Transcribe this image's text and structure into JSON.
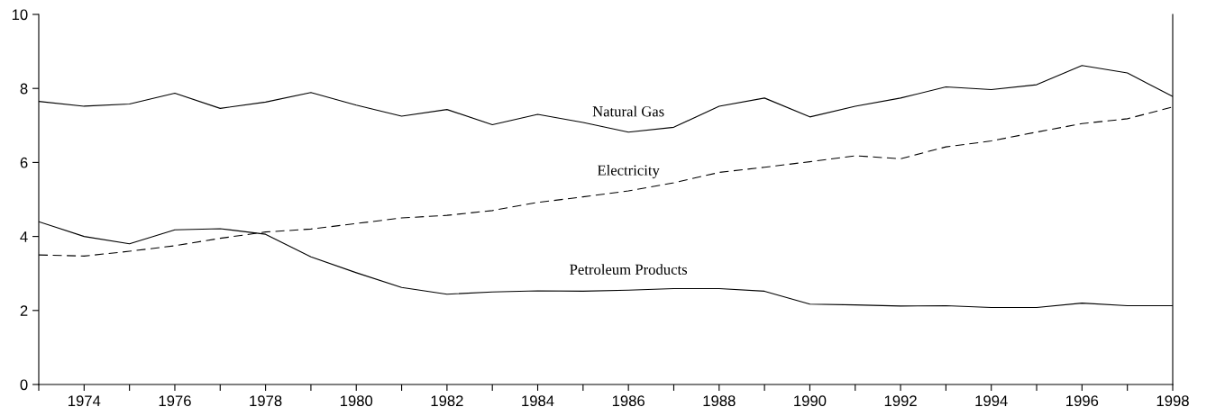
{
  "chart_data": {
    "type": "line",
    "x": [
      1973,
      1974,
      1975,
      1976,
      1977,
      1978,
      1979,
      1980,
      1981,
      1982,
      1983,
      1984,
      1985,
      1986,
      1987,
      1988,
      1989,
      1990,
      1991,
      1992,
      1993,
      1994,
      1995,
      1996,
      1997,
      1998
    ],
    "series": [
      {
        "name": "Natural Gas",
        "color": "#000000",
        "line_style": "solid",
        "values": [
          7.65,
          7.52,
          7.58,
          7.87,
          7.46,
          7.63,
          7.89,
          7.55,
          7.25,
          7.43,
          7.02,
          7.3,
          7.08,
          6.82,
          6.95,
          7.52,
          7.74,
          7.23,
          7.52,
          7.74,
          8.04,
          7.97,
          8.1,
          8.62,
          8.42,
          7.78
        ]
      },
      {
        "name": "Electricity",
        "color": "#000000",
        "line_style": "dashed",
        "values": [
          3.5,
          3.47,
          3.6,
          3.75,
          3.95,
          4.12,
          4.2,
          4.35,
          4.5,
          4.57,
          4.7,
          4.92,
          5.07,
          5.23,
          5.45,
          5.73,
          5.87,
          6.02,
          6.18,
          6.1,
          6.42,
          6.58,
          6.82,
          7.05,
          7.18,
          7.5
        ]
      },
      {
        "name": "Petroleum Products",
        "color": "#000000",
        "line_style": "solid",
        "values": [
          4.4,
          4.0,
          3.8,
          4.18,
          4.21,
          4.06,
          3.45,
          3.02,
          2.62,
          2.44,
          2.5,
          2.53,
          2.52,
          2.55,
          2.59,
          2.59,
          2.52,
          2.17,
          2.15,
          2.12,
          2.13,
          2.08,
          2.08,
          2.2,
          2.13,
          2.13
        ]
      }
    ],
    "xlim": [
      1973,
      1998
    ],
    "xticks": [
      {
        "value": 1973,
        "label": null
      },
      1974,
      {
        "value": 1975,
        "label": null
      },
      1976,
      {
        "value": 1977,
        "label": null
      },
      1978,
      {
        "value": 1979,
        "label": null
      },
      1980,
      {
        "value": 1981,
        "label": null
      },
      1982,
      {
        "value": 1983,
        "label": null
      },
      1984,
      {
        "value": 1985,
        "label": null
      },
      1986,
      {
        "value": 1987,
        "label": null
      },
      1988,
      {
        "value": 1989,
        "label": null
      },
      1990,
      {
        "value": 1991,
        "label": null
      },
      1992,
      {
        "value": 1993,
        "label": null
      },
      1994,
      {
        "value": 1995,
        "label": null
      },
      1996,
      {
        "value": 1997,
        "label": null
      },
      1998
    ],
    "ylim": [
      0,
      10
    ],
    "yticks": [
      0,
      2,
      4,
      6,
      8,
      10
    ],
    "grid": false,
    "legend": false,
    "marker": "none"
  }
}
